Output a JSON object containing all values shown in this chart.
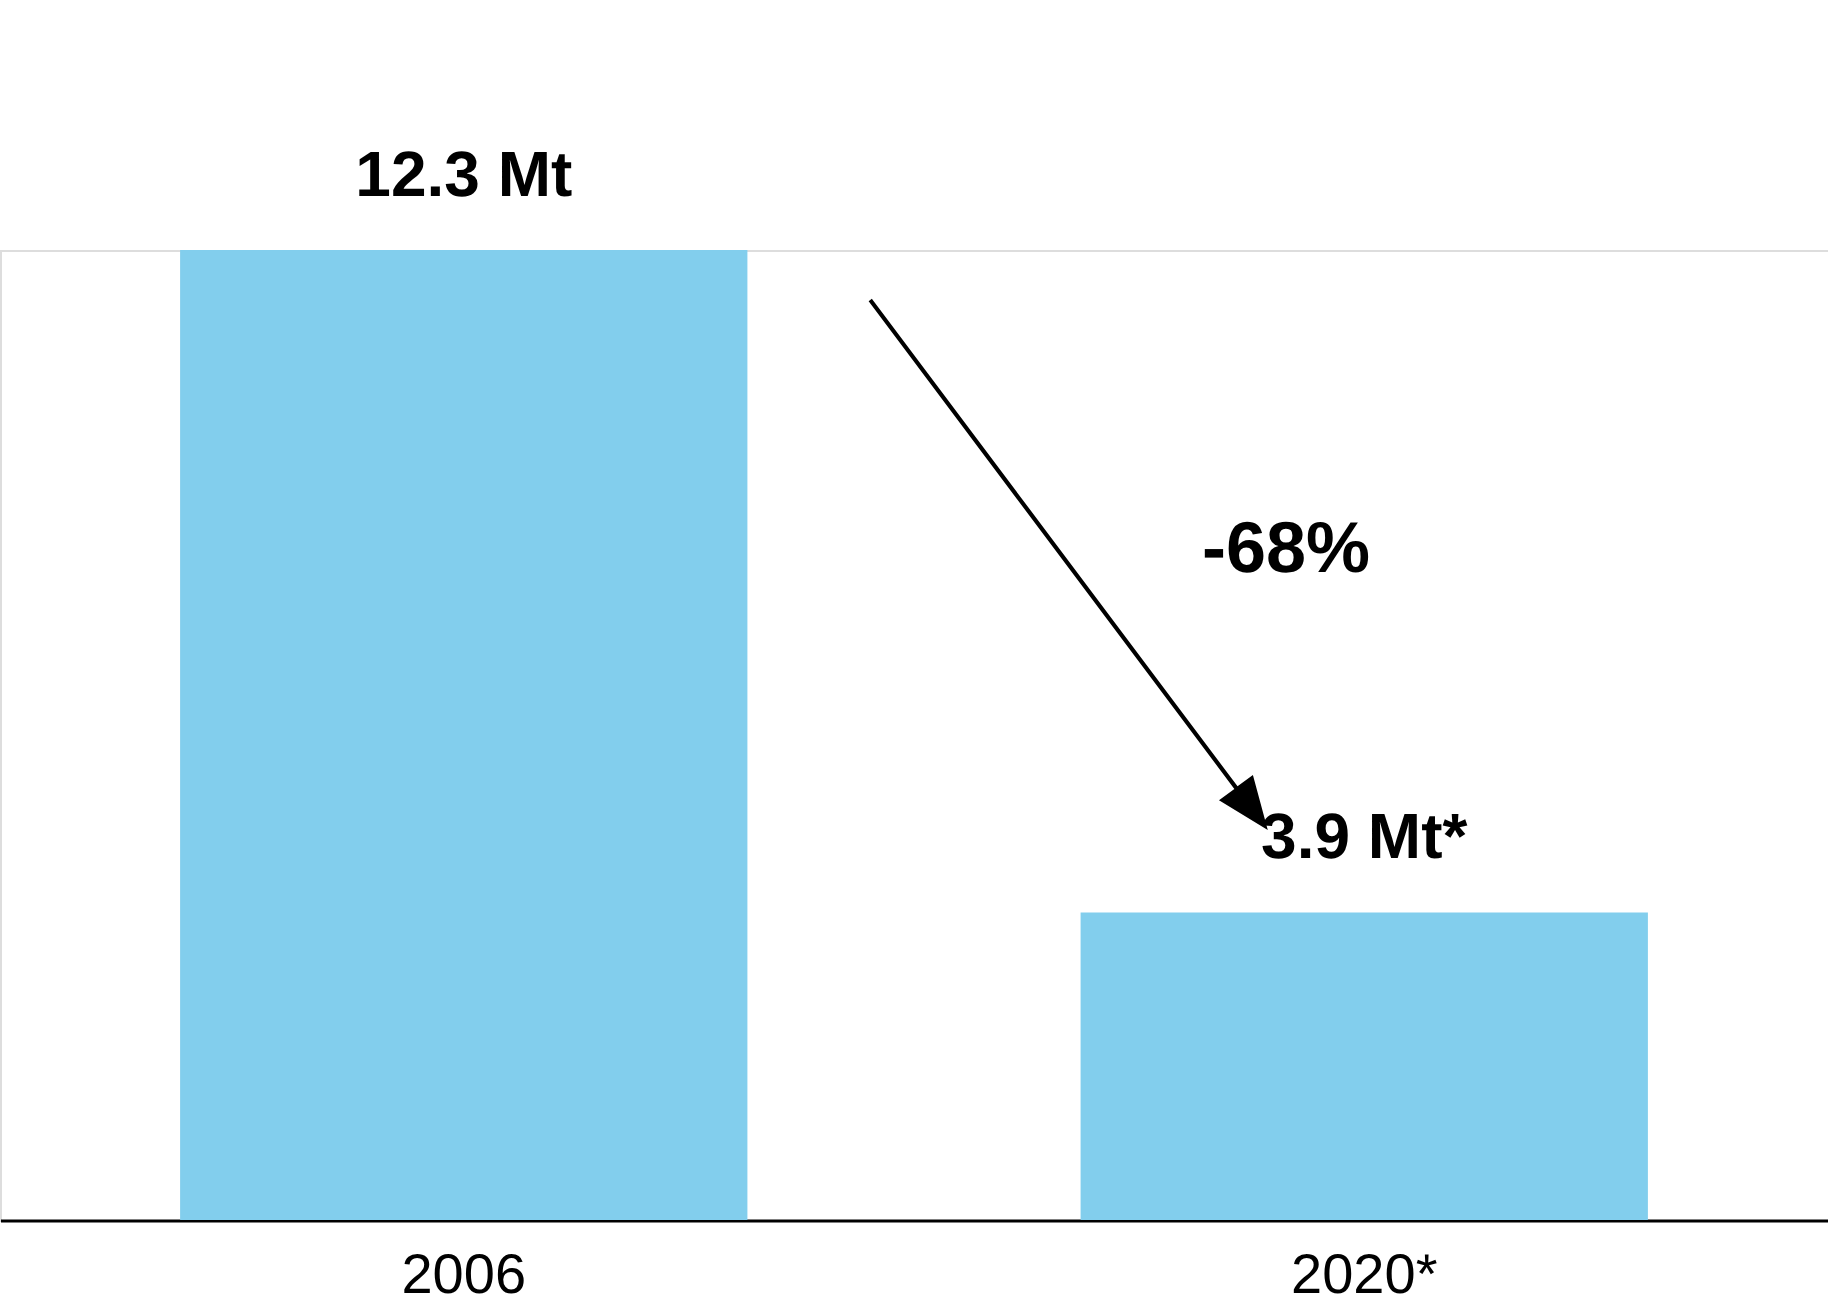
{
  "chart_data": {
    "type": "bar",
    "categories": [
      "2006",
      "2020*"
    ],
    "values": [
      12.3,
      3.9
    ],
    "value_labels": [
      "12.3 Mt",
      "3.9 Mt*"
    ],
    "color": "#82ceed",
    "annotations": [
      "-68%"
    ],
    "grid": false
  }
}
